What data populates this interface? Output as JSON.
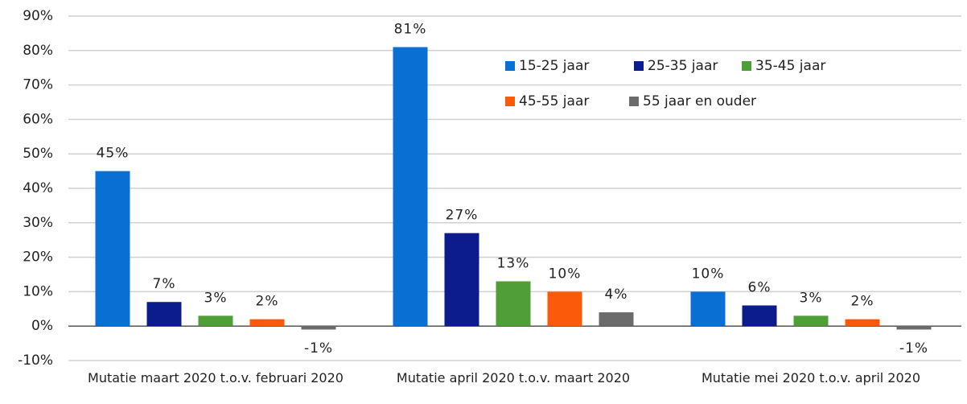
{
  "chart_data": {
    "type": "bar",
    "categories": [
      "Mutatie maart 2020 t.o.v. februari 2020",
      "Mutatie april 2020 t.o.v. maart 2020",
      "Mutatie mei 2020 t.o.v. april 2020"
    ],
    "series": [
      {
        "name": "15-25 jaar",
        "color": "#0a6fd3",
        "values": [
          45,
          81,
          10
        ],
        "value_labels": [
          "45%",
          "81%",
          "10%"
        ]
      },
      {
        "name": "25-35 jaar",
        "color": "#0c1c8c",
        "values": [
          7,
          27,
          6
        ],
        "value_labels": [
          "7%",
          "27%",
          "6%"
        ]
      },
      {
        "name": "35-45 jaar",
        "color": "#4f9e38",
        "values": [
          3,
          13,
          3
        ],
        "value_labels": [
          "3%",
          "13%",
          "3%"
        ]
      },
      {
        "name": "45-55 jaar",
        "color": "#fa5a0a",
        "values": [
          2,
          10,
          2
        ],
        "value_labels": [
          "2%",
          "10%",
          "2%"
        ]
      },
      {
        "name": "55 jaar en ouder",
        "color": "#6b6b6b",
        "values": [
          -1,
          4,
          -1
        ],
        "value_labels": [
          "-1%",
          "4%",
          "-1%"
        ]
      }
    ],
    "ylim": [
      -10,
      90
    ],
    "yticks": [
      {
        "value": -10,
        "label": "-10%"
      },
      {
        "value": 0,
        "label": "0%"
      },
      {
        "value": 10,
        "label": "10%"
      },
      {
        "value": 20,
        "label": "20%"
      },
      {
        "value": 30,
        "label": "30%"
      },
      {
        "value": 40,
        "label": "40%"
      },
      {
        "value": 50,
        "label": "50%"
      },
      {
        "value": 60,
        "label": "60%"
      },
      {
        "value": 70,
        "label": "70%"
      },
      {
        "value": 80,
        "label": "80%"
      },
      {
        "value": 90,
        "label": "90%"
      }
    ],
    "grid": true,
    "legend": "top-right"
  }
}
